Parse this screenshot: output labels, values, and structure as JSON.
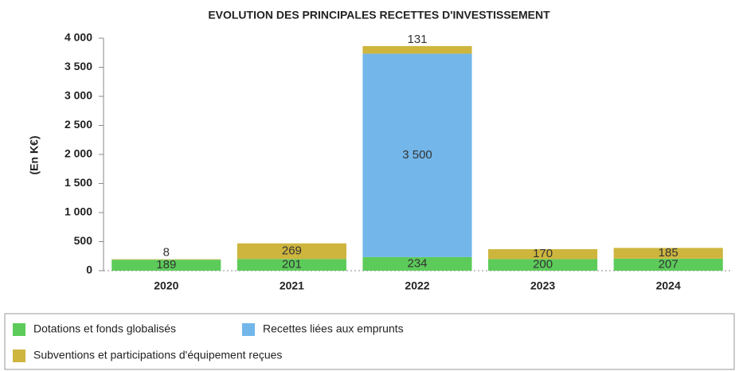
{
  "chart_data": {
    "type": "stacked_bar",
    "title": "EVOLUTION DES PRINCIPALES RECETTES D'INVESTISSEMENT",
    "y_label": "(En K€)",
    "categories": [
      "2020",
      "2021",
      "2022",
      "2023",
      "2024"
    ],
    "series": [
      {
        "name": "Dotations et fonds globalisés",
        "color": "#5ccb5a",
        "values": [
          189,
          201,
          234,
          200,
          207
        ]
      },
      {
        "name": "Recettes liées aux emprunts",
        "color": "#72b6ea",
        "values": [
          null,
          null,
          3500,
          null,
          null
        ],
        "value_labels": [
          null,
          null,
          "3 500",
          null,
          null
        ]
      },
      {
        "name": "Subventions et participations d'équipement reçues",
        "color": "#cdb53e",
        "values": [
          8,
          269,
          131,
          170,
          185
        ]
      }
    ],
    "ylim": [
      0,
      4000
    ],
    "yticks": [
      0,
      500,
      {
        "value": 1000,
        "label": "1 000"
      },
      {
        "value": 1500,
        "label": "1 500"
      },
      {
        "value": 2000,
        "label": "2 000"
      },
      {
        "value": 2500,
        "label": "2 500"
      },
      {
        "value": 3000,
        "label": "3 000"
      },
      {
        "value": 3500,
        "label": "3 500"
      },
      {
        "value": 4000,
        "label": "4 000"
      }
    ],
    "legend": "bottom"
  }
}
